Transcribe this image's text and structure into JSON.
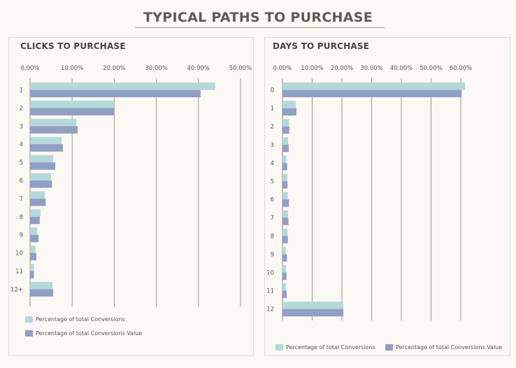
{
  "page": {
    "title": "TYPICAL PATHS TO PURCHASE"
  },
  "colors": {
    "conversions": "#b3d9d8",
    "value": "#919fc5",
    "grid": "#999999",
    "axis": "#888888"
  },
  "legend": {
    "conversions_label": "Percentage of total Conversions",
    "value_label": "Percentage of total Conversions Value"
  },
  "chart_data": [
    {
      "type": "bar",
      "orientation": "horizontal",
      "title": "CLICKS TO PURCHASE",
      "categories": [
        "1",
        "2",
        "3",
        "4",
        "5",
        "6",
        "7",
        "8",
        "9",
        "10",
        "11",
        "12+"
      ],
      "xlim": [
        0,
        50
      ],
      "xticks": [
        "0.00%",
        "10.00%",
        "20.00%",
        "30.00%",
        "40.00%",
        "50.00%"
      ],
      "series": [
        {
          "name": "Percentage of total Conversions",
          "values": [
            44,
            20,
            11,
            7.5,
            5.5,
            5,
            3.5,
            2.5,
            1.7,
            1.3,
            0.9,
            5.3
          ]
        },
        {
          "name": "Percentage of total Conversions Value",
          "values": [
            40.5,
            20,
            11.3,
            7.8,
            6,
            5.2,
            3.7,
            2.3,
            2,
            1.5,
            0.9,
            5.5
          ]
        }
      ],
      "legend_position": "bottom-left"
    },
    {
      "type": "bar",
      "orientation": "horizontal",
      "title": "DAYS TO PURCHASE",
      "categories": [
        "0",
        "1",
        "2",
        "3",
        "4",
        "5",
        "6",
        "7",
        "8",
        "9",
        "10",
        "11",
        "12"
      ],
      "xlim": [
        0,
        60
      ],
      "xticks": [
        "0.00%",
        "10.00%",
        "20.00%",
        "30.00%",
        "40.00%",
        "50.00%",
        "60.00%"
      ],
      "series": [
        {
          "name": "Percentage of total Conversions",
          "values": [
            61.5,
            4.5,
            2.2,
            1.9,
            1.3,
            1.6,
            1.8,
            1.9,
            1.7,
            1.1,
            1.2,
            1.2,
            20.4
          ]
        },
        {
          "name": "Percentage of total Conversions Value",
          "values": [
            60.3,
            4.7,
            2.3,
            2.1,
            1.6,
            1.7,
            2.2,
            2.0,
            1.8,
            1.5,
            1.4,
            1.4,
            20.5
          ]
        }
      ],
      "legend_position": "bottom"
    }
  ]
}
